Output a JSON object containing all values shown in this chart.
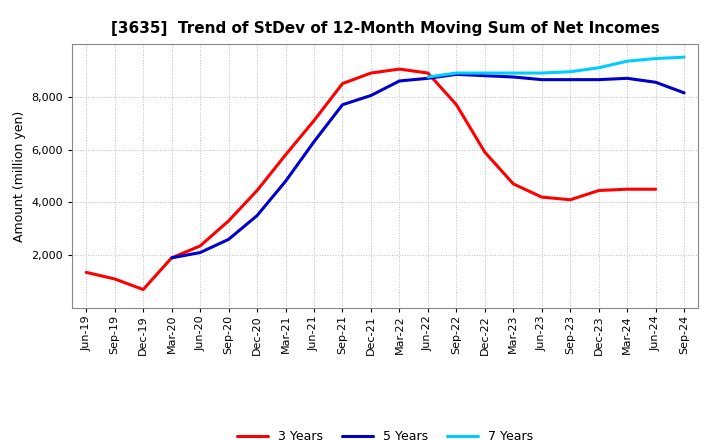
{
  "title": "[3635]  Trend of StDev of 12-Month Moving Sum of Net Incomes",
  "ylabel": "Amount (million yen)",
  "x_labels": [
    "Jun-19",
    "Sep-19",
    "Dec-19",
    "Mar-20",
    "Jun-20",
    "Sep-20",
    "Dec-20",
    "Mar-21",
    "Jun-21",
    "Sep-21",
    "Dec-21",
    "Mar-22",
    "Jun-22",
    "Sep-22",
    "Dec-22",
    "Mar-23",
    "Jun-23",
    "Sep-23",
    "Dec-23",
    "Mar-24",
    "Jun-24",
    "Sep-24"
  ],
  "series": {
    "3 Years": {
      "color": "#FF0000",
      "values": [
        1350,
        1100,
        700,
        1900,
        2350,
        3300,
        4450,
        5800,
        7100,
        8500,
        8900,
        9050,
        8900,
        7700,
        5900,
        4700,
        4200,
        4100,
        4450,
        4500,
        4500,
        null
      ]
    },
    "5 Years": {
      "color": "#0000CC",
      "values": [
        null,
        null,
        null,
        1900,
        2100,
        2600,
        3500,
        4800,
        6300,
        7700,
        8050,
        8600,
        8700,
        8850,
        8800,
        8750,
        8650,
        8650,
        8650,
        8700,
        8550,
        8150
      ]
    },
    "7 Years": {
      "color": "#00CCFF",
      "values": [
        null,
        null,
        null,
        null,
        null,
        null,
        null,
        null,
        null,
        null,
        null,
        null,
        8750,
        8900,
        8900,
        8900,
        8900,
        8950,
        9100,
        9350,
        9450,
        9500
      ]
    },
    "10 Years": {
      "color": "#008000",
      "values": [
        null,
        null,
        null,
        null,
        null,
        null,
        null,
        null,
        null,
        null,
        null,
        null,
        null,
        null,
        null,
        null,
        null,
        null,
        null,
        null,
        null,
        null
      ]
    }
  },
  "ylim": [
    0,
    10000
  ],
  "yticks": [
    2000,
    4000,
    6000,
    8000
  ],
  "background_color": "#FFFFFF",
  "grid_color": "#BBBBBB"
}
